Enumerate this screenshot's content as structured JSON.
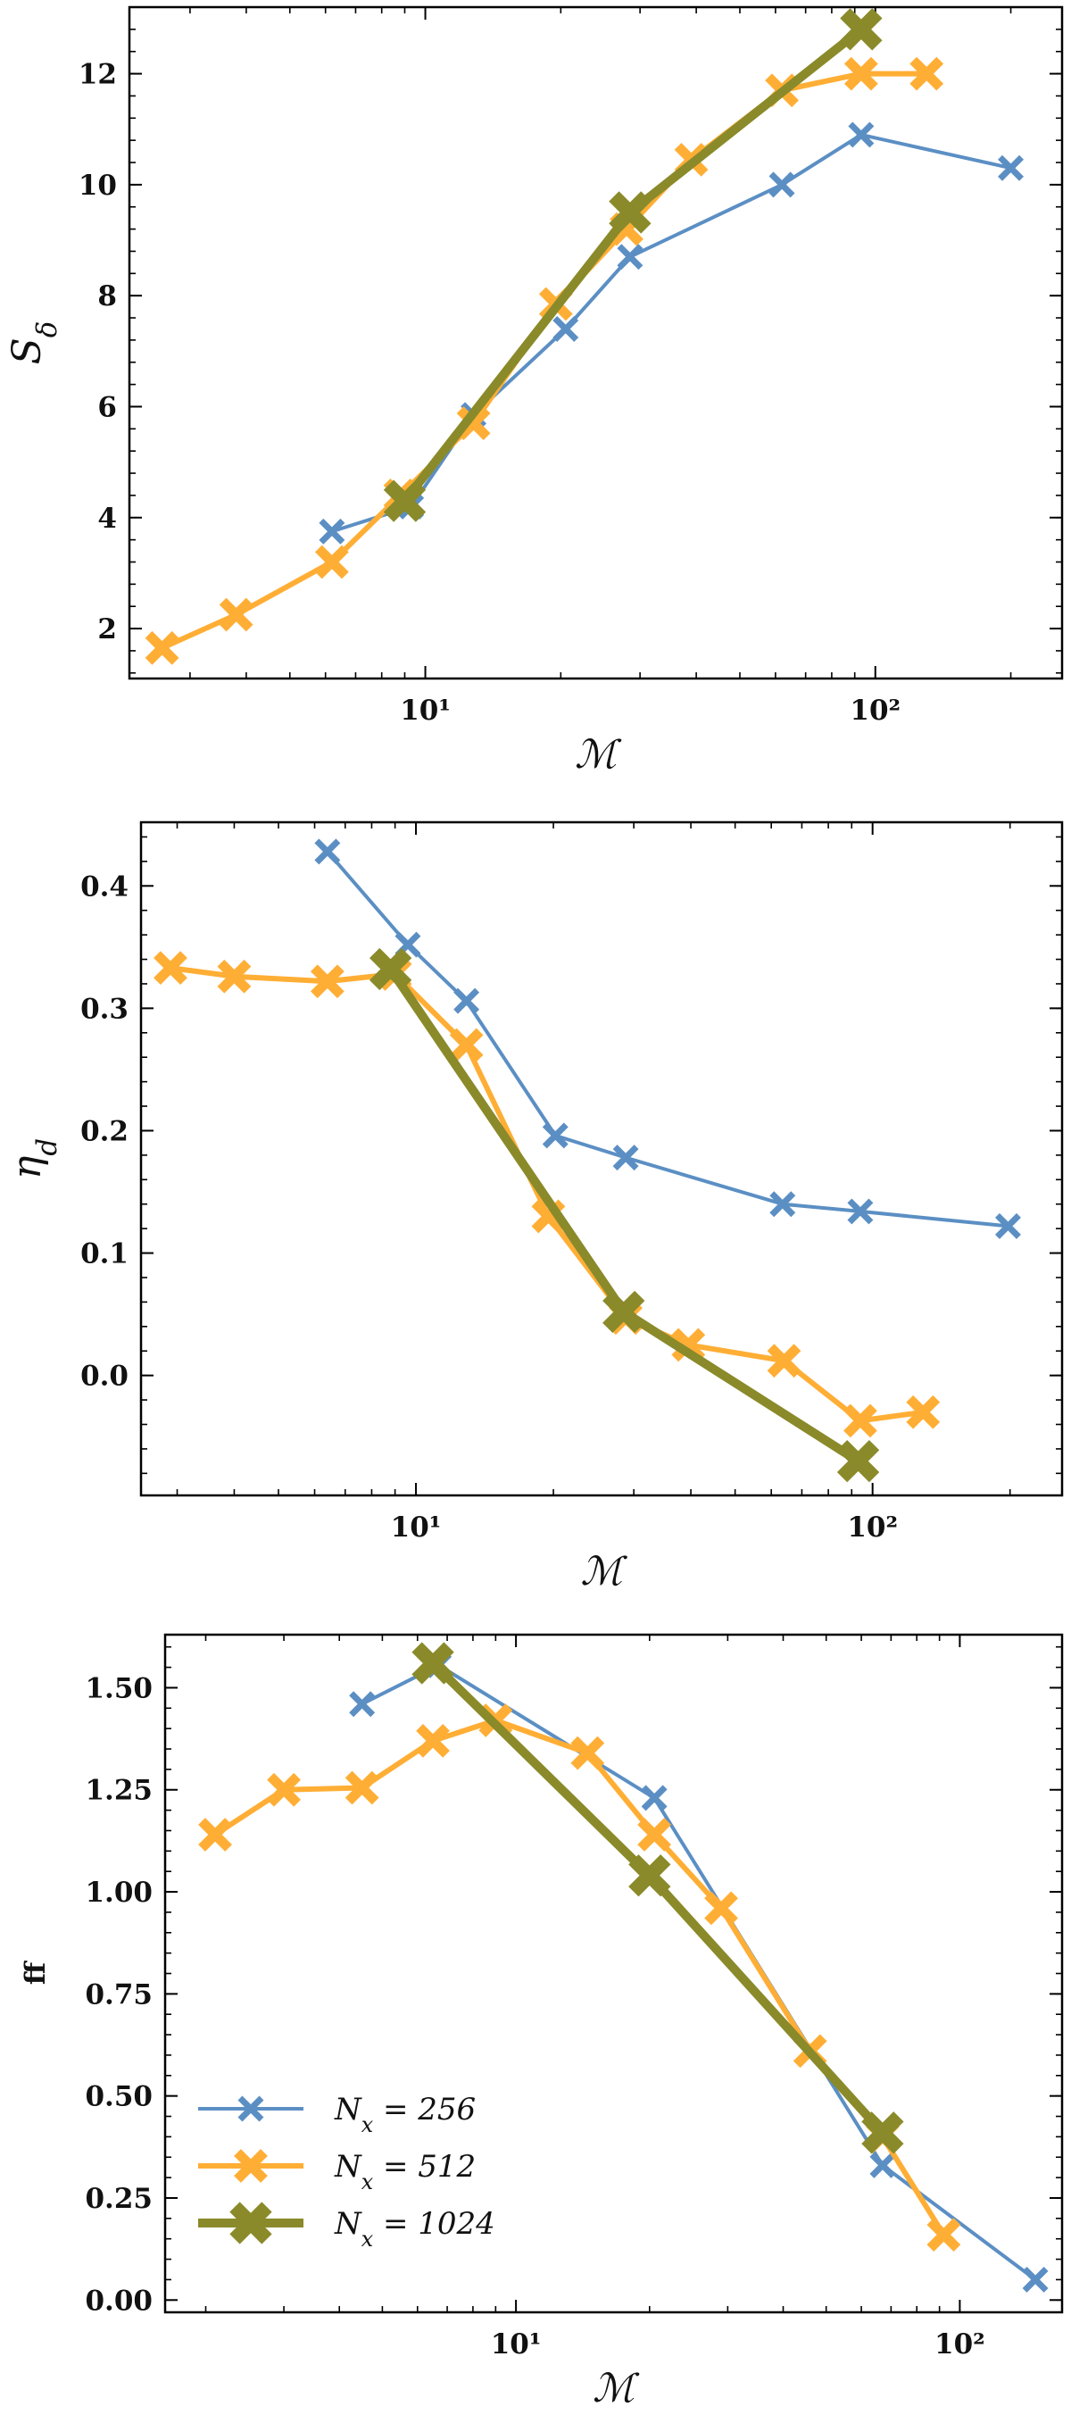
{
  "chart_data": [
    {
      "type": "line",
      "xscale": "log",
      "xlim": [
        2.2,
        260
      ],
      "ylim": [
        1.1,
        13.2
      ],
      "xlabel": "ℳ",
      "ylabel": "S_δ",
      "x_ticks": [
        {
          "value": 10,
          "label": "10¹"
        },
        {
          "value": 100,
          "label": "10²"
        }
      ],
      "y_ticks": [
        {
          "value": 2,
          "label": "2"
        },
        {
          "value": 4,
          "label": "4"
        },
        {
          "value": 6,
          "label": "6"
        },
        {
          "value": 8,
          "label": "8"
        },
        {
          "value": 10,
          "label": "10"
        },
        {
          "value": 12,
          "label": "12"
        }
      ],
      "series": [
        {
          "name": "N_x = 256",
          "color": "#5b8fc4",
          "points": [
            [
              6.2,
              3.75
            ],
            [
              9.3,
              4.2
            ],
            [
              12.8,
              5.85
            ],
            [
              20.5,
              7.4
            ],
            [
              28.5,
              8.7
            ],
            [
              62,
              10.0
            ],
            [
              93,
              10.9
            ],
            [
              200,
              10.3
            ]
          ]
        },
        {
          "name": "N_x = 512",
          "color": "#ffae35",
          "points": [
            [
              2.6,
              1.65
            ],
            [
              3.8,
              2.25
            ],
            [
              6.2,
              3.2
            ],
            [
              8.8,
              4.4
            ],
            [
              12.8,
              5.7
            ],
            [
              19.5,
              7.85
            ],
            [
              28,
              9.2
            ],
            [
              39,
              10.45
            ],
            [
              62,
              11.7
            ],
            [
              93,
              12.0
            ],
            [
              130,
              12.0
            ]
          ]
        },
        {
          "name": "N_x = 1024",
          "color": "#8a8a2a",
          "points": [
            [
              9.0,
              4.3
            ],
            [
              28.5,
              9.5
            ],
            [
              93,
              12.8
            ]
          ]
        }
      ]
    },
    {
      "type": "line",
      "xscale": "log",
      "xlim": [
        2.5,
        260
      ],
      "ylim": [
        -0.098,
        0.452
      ],
      "xlabel": "ℳ",
      "ylabel": "η_d",
      "x_ticks": [
        {
          "value": 10,
          "label": "10¹"
        },
        {
          "value": 100,
          "label": "10²"
        }
      ],
      "y_ticks": [
        {
          "value": 0.0,
          "label": "0.0"
        },
        {
          "value": 0.1,
          "label": "0.1"
        },
        {
          "value": 0.2,
          "label": "0.2"
        },
        {
          "value": 0.3,
          "label": "0.3"
        },
        {
          "value": 0.4,
          "label": "0.4"
        }
      ],
      "series": [
        {
          "name": "N_x = 256",
          "color": "#5b8fc4",
          "points": [
            [
              6.4,
              0.428
            ],
            [
              9.6,
              0.352
            ],
            [
              12.9,
              0.306
            ],
            [
              20.2,
              0.196
            ],
            [
              28.8,
              0.178
            ],
            [
              63.5,
              0.14
            ],
            [
              94,
              0.134
            ],
            [
              198,
              0.122
            ]
          ]
        },
        {
          "name": "N_x = 512",
          "color": "#ffae35",
          "points": [
            [
              2.9,
              0.333
            ],
            [
              4.0,
              0.326
            ],
            [
              6.4,
              0.322
            ],
            [
              9.0,
              0.328
            ],
            [
              12.9,
              0.27
            ],
            [
              19.5,
              0.13
            ],
            [
              28.8,
              0.047
            ],
            [
              39.5,
              0.025
            ],
            [
              64,
              0.012
            ],
            [
              94,
              -0.037
            ],
            [
              129,
              -0.03
            ]
          ]
        },
        {
          "name": "N_x = 1024",
          "color": "#8a8a2a",
          "points": [
            [
              8.8,
              0.332
            ],
            [
              28.5,
              0.052
            ],
            [
              93,
              -0.07
            ]
          ]
        }
      ]
    },
    {
      "type": "line",
      "xscale": "log",
      "xlim": [
        1.62,
        170
      ],
      "ylim": [
        -0.03,
        1.63
      ],
      "xlabel": "ℳ",
      "ylabel": "ff",
      "x_ticks": [
        {
          "value": 10,
          "label": "10¹"
        },
        {
          "value": 100,
          "label": "10²"
        }
      ],
      "y_ticks": [
        {
          "value": 0.0,
          "label": "0.00"
        },
        {
          "value": 0.25,
          "label": "0.25"
        },
        {
          "value": 0.5,
          "label": "0.50"
        },
        {
          "value": 0.75,
          "label": "0.75"
        },
        {
          "value": 1.0,
          "label": "1.00"
        },
        {
          "value": 1.25,
          "label": "1.25"
        },
        {
          "value": 1.5,
          "label": "1.50"
        }
      ],
      "legend": {
        "position": "lower-left",
        "entries": [
          "N_x = 256",
          "N_x = 512",
          "N_x = 1024"
        ]
      },
      "series": [
        {
          "name": "N_x = 256",
          "color": "#5b8fc4",
          "points": [
            [
              4.5,
              1.46
            ],
            [
              6.7,
              1.555
            ],
            [
              20.5,
              1.23
            ],
            [
              67,
              0.33
            ],
            [
              148,
              0.05
            ]
          ]
        },
        {
          "name": "N_x = 512",
          "color": "#ffae35",
          "points": [
            [
              2.1,
              1.14
            ],
            [
              3.0,
              1.25
            ],
            [
              4.5,
              1.255
            ],
            [
              6.5,
              1.37
            ],
            [
              9.0,
              1.42
            ],
            [
              14.5,
              1.34
            ],
            [
              20.5,
              1.14
            ],
            [
              29,
              0.96
            ],
            [
              46,
              0.61
            ],
            [
              67,
              0.4
            ],
            [
              92,
              0.16
            ]
          ]
        },
        {
          "name": "N_x = 1024",
          "color": "#8a8a2a",
          "points": [
            [
              6.5,
              1.56
            ],
            [
              20,
              1.04
            ],
            [
              67,
              0.41
            ]
          ]
        }
      ]
    }
  ]
}
